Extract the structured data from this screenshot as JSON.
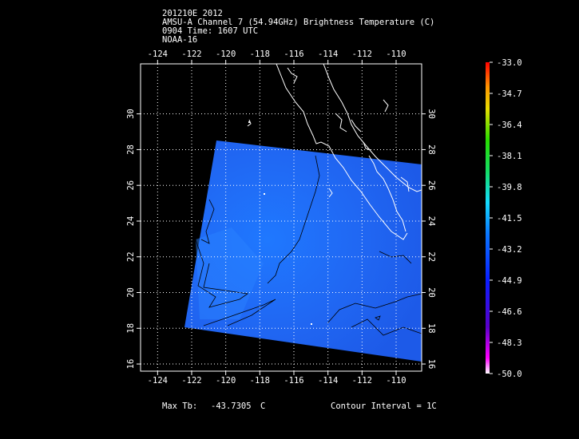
{
  "header": {
    "line1": "201210E 2012",
    "line2": "AMSU-A Channel 7 (54.94GHz) Brightness Temperature (C)",
    "line3": "0904 Time: 1607 UTC",
    "line4": "NOAA-16"
  },
  "map": {
    "lon_ticks": [
      "-124",
      "-122",
      "-120",
      "-118",
      "-116",
      "-114",
      "-112",
      "-110"
    ],
    "lat_ticks": [
      "16",
      "18",
      "20",
      "22",
      "24",
      "26",
      "28",
      "30"
    ],
    "lon_range": [
      -125,
      -108.5
    ],
    "lat_range": [
      15.6,
      32.8
    ]
  },
  "colorbar": {
    "labels": [
      "-33.0",
      "-34.7",
      "-36.4",
      "-38.1",
      "-39.8",
      "-41.5",
      "-43.2",
      "-44.9",
      "-46.6",
      "-48.3",
      "-50.0"
    ],
    "range": [
      -50.0,
      -33.0
    ],
    "colors": [
      "#ffffff",
      "#7a00a8",
      "#2a1cff",
      "#1e7bff",
      "#28c8ff",
      "#1edc8c",
      "#1edc28",
      "#c8dc00",
      "#ffa000",
      "#ff4000",
      "#ff0000"
    ]
  },
  "footer": {
    "max_label": "Max Tb:",
    "max_value": "-43.7305",
    "max_unit": "C",
    "contour": "Contour Interval = 1C"
  }
}
